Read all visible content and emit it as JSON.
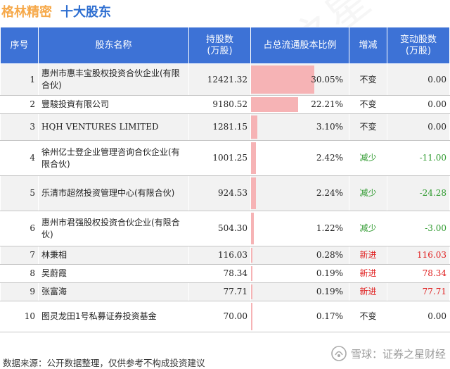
{
  "header": {
    "company": "格林精密",
    "section": "十大股东"
  },
  "columns": [
    "序号",
    "股东名称",
    "持股数\n(万股)",
    "占总流通股本比例",
    "增减",
    "变动股数\n(万股)"
  ],
  "rows": [
    {
      "idx": "1",
      "name": "惠州市惠丰宝股权投资合伙企业(有限合伙)",
      "shares": "12421.32",
      "ratio": 30.05,
      "ratio_label": "30.05%",
      "change": "不变",
      "change_type": "same",
      "delta": "0.00"
    },
    {
      "idx": "2",
      "name": "豐駿投資有限公司",
      "shares": "9180.52",
      "ratio": 22.21,
      "ratio_label": "22.21%",
      "change": "不变",
      "change_type": "same",
      "delta": "0.00"
    },
    {
      "idx": "3",
      "name": "HQH VENTURES LIMITED",
      "shares": "1281.15",
      "ratio": 3.1,
      "ratio_label": "3.10%",
      "change": "不变",
      "change_type": "same",
      "delta": "0.00"
    },
    {
      "idx": "4",
      "name": "徐州亿士登企业管理咨询合伙企业(有限合伙)",
      "shares": "1001.25",
      "ratio": 2.42,
      "ratio_label": "2.42%",
      "change": "减少",
      "change_type": "down",
      "delta": "-11.00"
    },
    {
      "idx": "5",
      "name": "乐清市超然投资管理中心(有限合伙)",
      "shares": "924.53",
      "ratio": 2.24,
      "ratio_label": "2.24%",
      "change": "减少",
      "change_type": "down",
      "delta": "-24.28"
    },
    {
      "idx": "6",
      "name": "惠州市君强股权投资合伙企业(有限合伙)",
      "shares": "504.30",
      "ratio": 1.22,
      "ratio_label": "1.22%",
      "change": "减少",
      "change_type": "down",
      "delta": "-3.00"
    },
    {
      "idx": "7",
      "name": "林秉相",
      "shares": "116.03",
      "ratio": 0.28,
      "ratio_label": "0.28%",
      "change": "新进",
      "change_type": "new",
      "delta": "116.03"
    },
    {
      "idx": "8",
      "name": "吴蔚霞",
      "shares": "78.34",
      "ratio": 0.19,
      "ratio_label": "0.19%",
      "change": "新进",
      "change_type": "new",
      "delta": "78.34"
    },
    {
      "idx": "9",
      "name": "张富海",
      "shares": "77.71",
      "ratio": 0.19,
      "ratio_label": "0.19%",
      "change": "新进",
      "change_type": "new",
      "delta": "77.71"
    },
    {
      "idx": "10",
      "name": "图灵龙田1号私募证券投资基金",
      "shares": "70.00",
      "ratio": 0.17,
      "ratio_label": "0.17%",
      "change": "不变",
      "change_type": "same",
      "delta": "0.00"
    }
  ],
  "footer": {
    "source": "数据来源：公开数据整理，仅供参考不构成投资建议",
    "brand": "雪球：证券之星财经"
  },
  "icons": {
    "brand_logo": "snowball-logo-icon"
  },
  "colors": {
    "header_bg": "#3d72d6",
    "bar": "#f6b3b5",
    "down": "#2f9a2f",
    "new": "#e02020",
    "company": "#f6a94a",
    "section": "#2f6fd1"
  }
}
